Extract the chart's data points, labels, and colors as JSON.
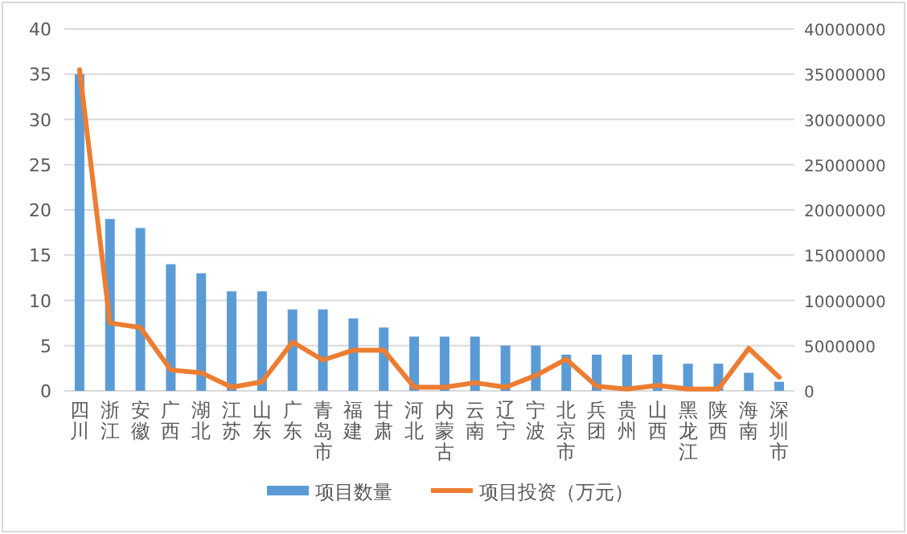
{
  "chart_data": {
    "type": "bar",
    "categories": [
      "四川",
      "浙江",
      "安徽",
      "广西",
      "湖北",
      "江苏",
      "山东",
      "广东",
      "青岛市",
      "福建",
      "甘肃",
      "河北",
      "内蒙古",
      "云南",
      "辽宁",
      "宁波",
      "北京市",
      "兵团",
      "贵州",
      "山西",
      "黑龙江",
      "陕西",
      "海南",
      "深圳市"
    ],
    "series": [
      {
        "name": "项目数量",
        "color": "#5b9bd5",
        "values": [
          35,
          19,
          18,
          14,
          13,
          11,
          11,
          9,
          9,
          8,
          7,
          6,
          6,
          6,
          5,
          5,
          4,
          4,
          4,
          4,
          3,
          3,
          2,
          1
        ]
      },
      {
        "name": "项目投资（万元）",
        "type": "line",
        "axis": "y2",
        "color": "#ed7d31",
        "values": [
          35500000,
          7500000,
          7000000,
          2300000,
          2000000,
          400000,
          1000000,
          5400000,
          3400000,
          4500000,
          4500000,
          400000,
          400000,
          900000,
          400000,
          1700000,
          3500000,
          500000,
          200000,
          600000,
          200000,
          200000,
          4700000,
          1500000
        ]
      }
    ],
    "ylim": [
      0,
      40
    ],
    "yticks": [
      0,
      5,
      10,
      15,
      20,
      25,
      30,
      35,
      40
    ],
    "y2lim": [
      0,
      40000000
    ],
    "y2ticks": [
      0,
      5000000,
      10000000,
      15000000,
      20000000,
      25000000,
      30000000,
      35000000,
      40000000
    ],
    "grid": "y",
    "legend": "bottom"
  }
}
